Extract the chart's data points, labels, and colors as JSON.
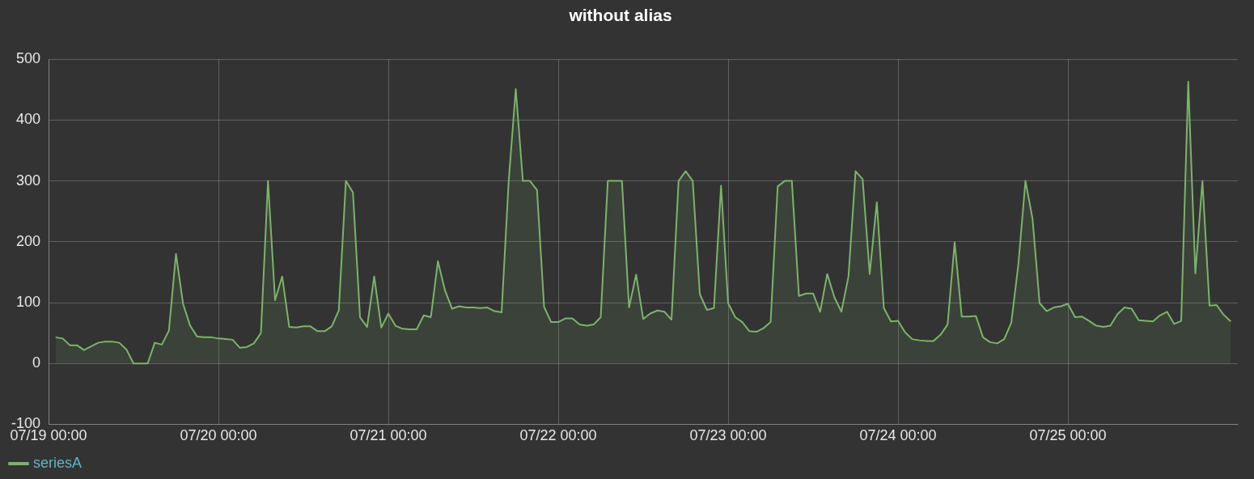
{
  "chart_data": {
    "type": "area",
    "title": "without alias",
    "x": [
      "--07-19T01:00",
      "--07-19T02:00",
      "--07-19T03:00",
      "--07-19T04:00",
      "--07-19T05:00",
      "--07-19T06:00",
      "--07-19T07:00",
      "--07-19T08:00",
      "--07-19T09:00",
      "--07-19T10:00",
      "--07-19T11:00",
      "--07-19T12:00",
      "--07-19T13:00",
      "--07-19T14:00",
      "--07-19T15:00",
      "--07-19T16:00",
      "--07-19T17:00",
      "--07-19T18:00",
      "--07-19T19:00",
      "--07-19T20:00",
      "--07-19T21:00",
      "--07-19T22:00",
      "--07-19T23:00",
      "--07-20T00:00",
      "--07-20T01:00",
      "--07-20T02:00",
      "--07-20T03:00",
      "--07-20T04:00",
      "--07-20T05:00",
      "--07-20T06:00",
      "--07-20T07:00",
      "--07-20T08:00",
      "--07-20T09:00",
      "--07-20T10:00",
      "--07-20T11:00",
      "--07-20T12:00",
      "--07-20T13:00",
      "--07-20T14:00",
      "--07-20T15:00",
      "--07-20T16:00",
      "--07-20T17:00",
      "--07-20T18:00",
      "--07-20T19:00",
      "--07-20T20:00",
      "--07-20T21:00",
      "--07-20T22:00",
      "--07-20T23:00",
      "--07-21T00:00",
      "--07-21T01:00",
      "--07-21T02:00",
      "--07-21T03:00",
      "--07-21T04:00",
      "--07-21T05:00",
      "--07-21T06:00",
      "--07-21T07:00",
      "--07-21T08:00",
      "--07-21T09:00",
      "--07-21T10:00",
      "--07-21T11:00",
      "--07-21T12:00",
      "--07-21T13:00",
      "--07-21T14:00",
      "--07-21T15:00",
      "--07-21T16:00",
      "--07-21T17:00",
      "--07-21T18:00",
      "--07-21T19:00",
      "--07-21T20:00",
      "--07-21T21:00",
      "--07-21T22:00",
      "--07-21T23:00",
      "--07-22T00:00",
      "--07-22T01:00",
      "--07-22T02:00",
      "--07-22T03:00",
      "--07-22T04:00",
      "--07-22T05:00",
      "--07-22T06:00",
      "--07-22T07:00",
      "--07-22T08:00",
      "--07-22T09:00",
      "--07-22T10:00",
      "--07-22T11:00",
      "--07-22T12:00",
      "--07-22T13:00",
      "--07-22T14:00",
      "--07-22T15:00",
      "--07-22T16:00",
      "--07-22T17:00",
      "--07-22T18:00",
      "--07-22T19:00",
      "--07-22T20:00",
      "--07-22T21:00",
      "--07-22T22:00",
      "--07-22T23:00",
      "--07-23T00:00",
      "--07-23T01:00",
      "--07-23T02:00",
      "--07-23T03:00",
      "--07-23T04:00",
      "--07-23T05:00",
      "--07-23T06:00",
      "--07-23T07:00",
      "--07-23T08:00",
      "--07-23T09:00",
      "--07-23T10:00",
      "--07-23T11:00",
      "--07-23T12:00",
      "--07-23T13:00",
      "--07-23T14:00",
      "--07-23T15:00",
      "--07-23T16:00",
      "--07-23T17:00",
      "--07-23T18:00",
      "--07-23T19:00",
      "--07-23T20:00",
      "--07-23T21:00",
      "--07-23T22:00",
      "--07-23T23:00",
      "--07-24T00:00",
      "--07-24T01:00",
      "--07-24T02:00",
      "--07-24T03:00",
      "--07-24T04:00",
      "--07-24T05:00",
      "--07-24T06:00",
      "--07-24T07:00",
      "--07-24T08:00",
      "--07-24T09:00",
      "--07-24T10:00",
      "--07-24T11:00",
      "--07-24T12:00",
      "--07-24T13:00",
      "--07-24T14:00",
      "--07-24T15:00",
      "--07-24T16:00",
      "--07-24T17:00",
      "--07-24T18:00",
      "--07-24T19:00",
      "--07-24T20:00",
      "--07-24T21:00",
      "--07-24T22:00",
      "--07-24T23:00",
      "--07-25T00:00",
      "--07-25T01:00",
      "--07-25T02:00",
      "--07-25T03:00",
      "--07-25T04:00",
      "--07-25T05:00",
      "--07-25T06:00",
      "--07-25T07:00",
      "--07-25T08:00",
      "--07-25T09:00",
      "--07-25T10:00",
      "--07-25T11:00",
      "--07-25T12:00",
      "--07-25T13:00",
      "--07-25T14:00",
      "--07-25T15:00",
      "--07-25T16:00",
      "--07-25T17:00",
      "--07-25T18:00",
      "--07-25T19:00",
      "--07-25T20:00",
      "--07-25T21:00",
      "--07-25T22:00",
      "--07-25T23:00"
    ],
    "series": [
      {
        "name": "seriesA",
        "color": "#7eb26d",
        "values": [
          43,
          41,
          30,
          30,
          22,
          28,
          34,
          36,
          36,
          34,
          23,
          0,
          0,
          0,
          34,
          31,
          54,
          180,
          98,
          62,
          44,
          43,
          43,
          41,
          40,
          39,
          26,
          27,
          33,
          50,
          300,
          104,
          143,
          60,
          59,
          61,
          61,
          53,
          53,
          61,
          87,
          300,
          281,
          76,
          60,
          143,
          59,
          82,
          62,
          57,
          56,
          56,
          79,
          76,
          168,
          120,
          90,
          94,
          92,
          92,
          91,
          92,
          86,
          84,
          300,
          451,
          300,
          300,
          285,
          93,
          68,
          68,
          74,
          74,
          64,
          62,
          64,
          76,
          300,
          300,
          300,
          92,
          146,
          73,
          82,
          87,
          85,
          72,
          300,
          316,
          300,
          114,
          88,
          91,
          292,
          99,
          76,
          68,
          53,
          52,
          58,
          68,
          291,
          300,
          300,
          111,
          115,
          115,
          85,
          147,
          109,
          85,
          143,
          316,
          303,
          147,
          265,
          91,
          69,
          70,
          51,
          40,
          38,
          37,
          37,
          47,
          64,
          199,
          77,
          77,
          78,
          43,
          35,
          33,
          40,
          67,
          163,
          300,
          238,
          99,
          86,
          92,
          94,
          98,
          76,
          77,
          70,
          62,
          60,
          62,
          81,
          92,
          90,
          71,
          70,
          69,
          79,
          85,
          65,
          70,
          463,
          148,
          300,
          95,
          96,
          80,
          69
        ]
      }
    ],
    "xlim": [
      "--07-19T00:00",
      "--07-26T00:00"
    ],
    "xticks": [
      {
        "value": "--07-19T00:00",
        "label": "07/19 00:00"
      },
      {
        "value": "--07-20T00:00",
        "label": "07/20 00:00"
      },
      {
        "value": "--07-21T00:00",
        "label": "07/21 00:00"
      },
      {
        "value": "--07-22T00:00",
        "label": "07/22 00:00"
      },
      {
        "value": "--07-23T00:00",
        "label": "07/23 00:00"
      },
      {
        "value": "--07-24T00:00",
        "label": "07/24 00:00"
      },
      {
        "value": "--07-25T00:00",
        "label": "07/25 00:00"
      }
    ],
    "ylim": [
      -100,
      500
    ],
    "yticks": [
      -100,
      0,
      100,
      200,
      300,
      400,
      500
    ],
    "grid": true,
    "legend": "bottom left",
    "marker": "none",
    "line_style": "solid"
  }
}
